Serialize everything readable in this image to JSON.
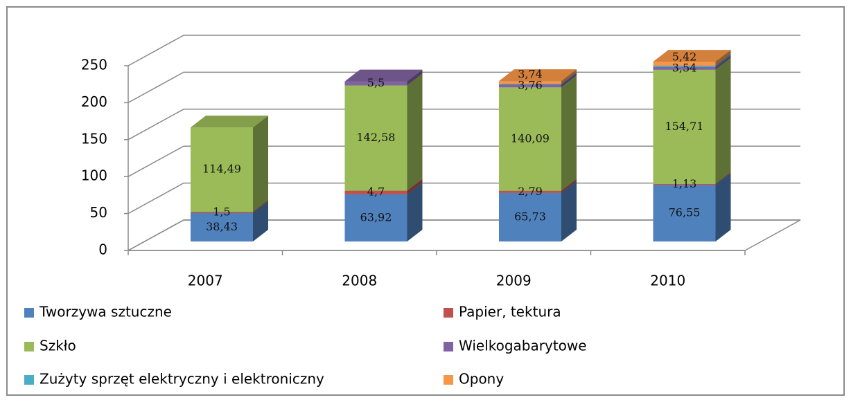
{
  "chart_data": {
    "type": "bar3d_stacked",
    "categories": [
      "2007",
      "2008",
      "2009",
      "2010"
    ],
    "series": [
      {
        "name": "Tworzywa sztuczne",
        "color": "#4f81bd",
        "values": [
          38.43,
          63.92,
          65.73,
          76.55
        ],
        "value_labels": [
          "38,43",
          "63,92",
          "65,73",
          "76,55"
        ]
      },
      {
        "name": "Papier, tektura",
        "color": "#c0504d",
        "values": [
          1.5,
          4.7,
          2.79,
          1.13
        ],
        "value_labels": [
          "1,5",
          "4,7",
          "2,79",
          "1,13"
        ]
      },
      {
        "name": "Szkło",
        "color": "#9bbb59",
        "values": [
          114.49,
          142.58,
          140.09,
          154.71
        ],
        "value_labels": [
          "114,49",
          "142,58",
          "140,09",
          "154,71"
        ]
      },
      {
        "name": "Wielkogabarytowe",
        "color": "#8064a2",
        "values": [
          null,
          5.5,
          3.76,
          3.54
        ],
        "value_labels": [
          null,
          "5,5",
          "3,76",
          "3,54"
        ]
      },
      {
        "name": "Zużyty sprzęt elektryczny i elektroniczny",
        "color": "#4bacc6",
        "values": [
          null,
          null,
          1,
          2
        ],
        "value_labels": [
          null,
          null,
          null,
          null
        ]
      },
      {
        "name": "Opony",
        "color": "#f79646",
        "values": [
          null,
          null,
          3.74,
          5.42
        ],
        "value_labels": [
          null,
          null,
          "3,74",
          "5,42"
        ]
      }
    ],
    "ylim": [
      0,
      250
    ],
    "yticks": [
      0,
      50,
      100,
      150,
      200,
      250
    ],
    "grid": true,
    "legend": "bottom"
  }
}
